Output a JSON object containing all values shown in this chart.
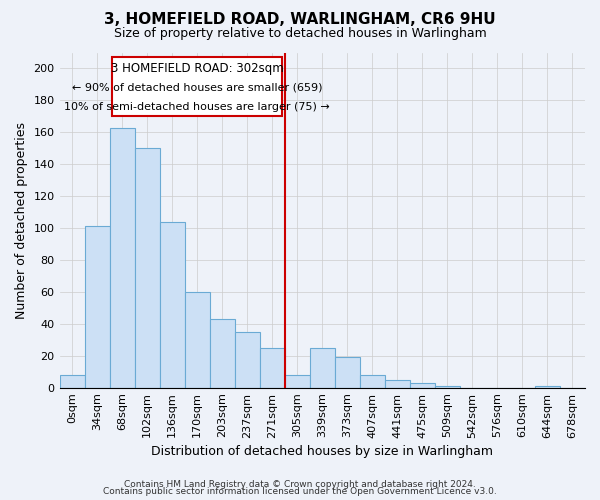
{
  "title": "3, HOMEFIELD ROAD, WARLINGHAM, CR6 9HU",
  "subtitle": "Size of property relative to detached houses in Warlingham",
  "xlabel": "Distribution of detached houses by size in Warlingham",
  "ylabel": "Number of detached properties",
  "bar_labels": [
    "0sqm",
    "34sqm",
    "68sqm",
    "102sqm",
    "136sqm",
    "170sqm",
    "203sqm",
    "237sqm",
    "271sqm",
    "305sqm",
    "339sqm",
    "373sqm",
    "407sqm",
    "441sqm",
    "475sqm",
    "509sqm",
    "542sqm",
    "576sqm",
    "610sqm",
    "644sqm",
    "678sqm"
  ],
  "bar_values": [
    8,
    101,
    163,
    150,
    104,
    60,
    43,
    35,
    25,
    8,
    25,
    19,
    8,
    5,
    3,
    1,
    0,
    0,
    0,
    1,
    0
  ],
  "subject_line_index": 9,
  "annotation_title": "3 HOMEFIELD ROAD: 302sqm",
  "annotation_line1": "← 90% of detached houses are smaller (659)",
  "annotation_line2": "10% of semi-detached houses are larger (75) →",
  "bar_color": "#cce0f5",
  "bar_edge_color": "#6aaad4",
  "subject_line_color": "#cc0000",
  "annotation_box_edge_color": "#cc0000",
  "background_color": "#eef2f9",
  "plot_bg_color": "#eef2f9",
  "footer1": "Contains HM Land Registry data © Crown copyright and database right 2024.",
  "footer2": "Contains public sector information licensed under the Open Government Licence v3.0.",
  "ylim": [
    0,
    210
  ],
  "grid_color": "#cccccc",
  "title_fontsize": 11,
  "subtitle_fontsize": 9,
  "axis_label_fontsize": 9,
  "tick_fontsize": 8,
  "footer_fontsize": 6.5
}
